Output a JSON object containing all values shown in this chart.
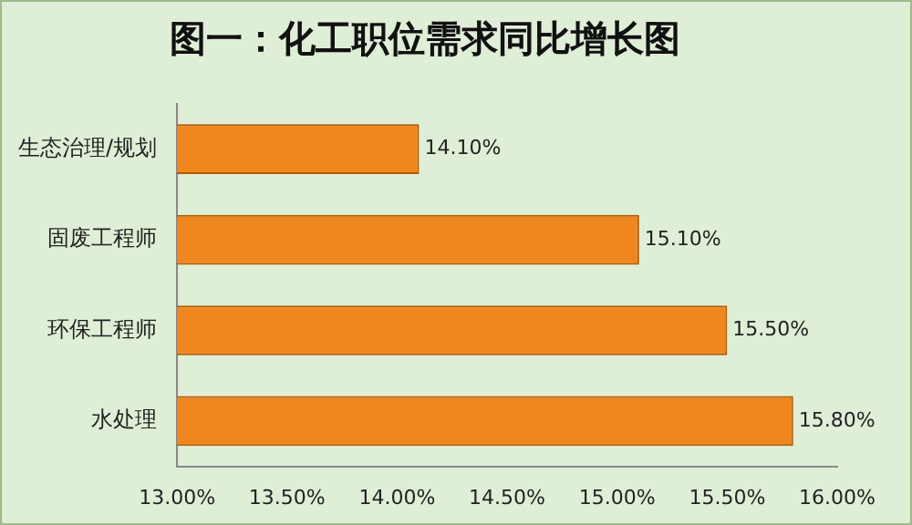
{
  "chart_data": {
    "type": "bar",
    "orientation": "horizontal",
    "title": "图一：化工职位需求同比增长图",
    "categories": [
      "生态治理/规划",
      "固废工程师",
      "环保工程师",
      "水处理"
    ],
    "values": [
      14.1,
      15.1,
      15.5,
      15.8
    ],
    "value_labels": [
      "14.10%",
      "15.10%",
      "15.50%",
      "15.80%"
    ],
    "color": "#f0861e",
    "xlim": [
      13,
      16
    ],
    "xticks": [
      {
        "value": 13,
        "label": "13.00%"
      },
      {
        "value": 13.5,
        "label": "13.50%"
      },
      {
        "value": 14,
        "label": "14.00%"
      },
      {
        "value": 14.5,
        "label": "14.50%"
      },
      {
        "value": 15,
        "label": "15.00%"
      },
      {
        "value": 15.5,
        "label": "15.50%"
      },
      {
        "value": 16,
        "label": "16.00%"
      }
    ],
    "grid": false,
    "legend": false
  }
}
